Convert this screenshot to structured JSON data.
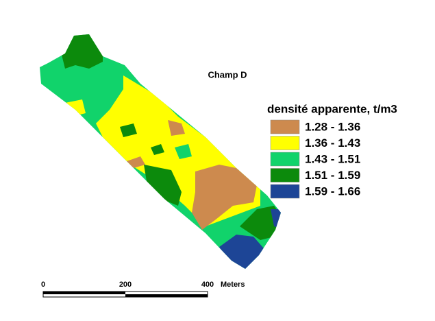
{
  "title": "Champ D",
  "legend": {
    "title": "densité apparente, t/m3",
    "items": [
      {
        "label": "1.28 - 1.36",
        "color": "#cd8a4e"
      },
      {
        "label": "1.36 - 1.43",
        "color": "#ffff00"
      },
      {
        "label": "1.43 - 1.51",
        "color": "#11d36b"
      },
      {
        "label": "1.51 - 1.59",
        "color": "#0c8a0c"
      },
      {
        "label": "1.59 - 1.66",
        "color": "#1d4596"
      }
    ]
  },
  "scale_bar": {
    "ticks": [
      0,
      200,
      400
    ],
    "unit": "Meters"
  }
}
